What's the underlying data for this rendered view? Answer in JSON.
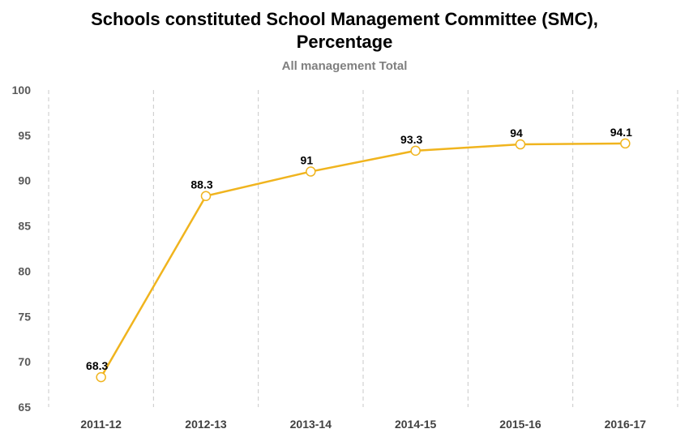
{
  "chart_data": {
    "type": "line",
    "title_line1": "Schools constituted School Management Committee (SMC),",
    "title_line2": "Percentage",
    "subtitle": "All management Total",
    "categories": [
      "2011-12",
      "2012-13",
      "2013-14",
      "2014-15",
      "2015-16",
      "2016-17"
    ],
    "series": [
      {
        "values": [
          68.3,
          88.3,
          91,
          93.3,
          94,
          94.1
        ]
      }
    ],
    "data_labels": [
      "68.3",
      "88.3",
      "91",
      "93.3",
      "94",
      "94.1"
    ],
    "ylim": [
      65,
      100
    ],
    "yticks": [
      65,
      70,
      75,
      80,
      85,
      90,
      95,
      100
    ],
    "grid": "vertical dashed",
    "colors": {
      "line": "#f0b41e",
      "marker_fill": "#ffffff",
      "grid": "#c8c8c8"
    }
  }
}
